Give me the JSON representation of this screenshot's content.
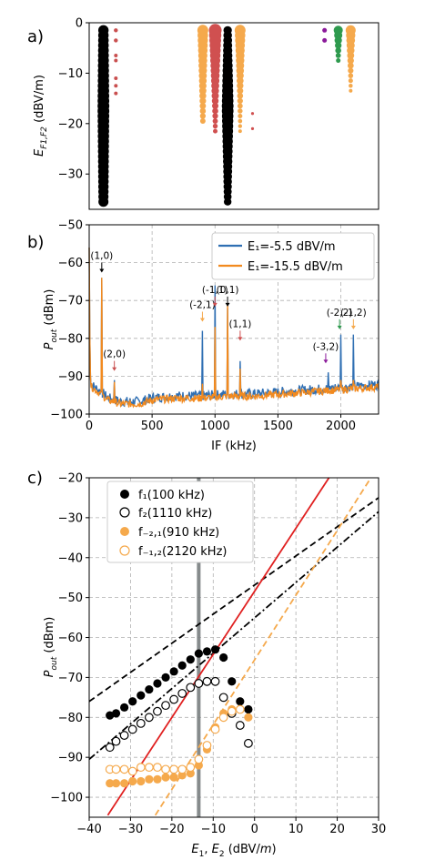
{
  "chart_data": [
    {
      "id": "a",
      "panel_label": "a)",
      "type": "scatter",
      "ylabel": "E_{F1,F2} (dBV/m)",
      "xlim": [
        0,
        2300
      ],
      "ylim": [
        -37,
        0
      ],
      "yticks": [
        {
          "value": 0,
          "label": "0"
        },
        {
          "value": -10,
          "label": "−10"
        },
        {
          "value": -20,
          "label": "−20"
        },
        {
          "value": -30,
          "label": "−30"
        }
      ],
      "series": [
        {
          "color": "#000000",
          "x": 100,
          "y_start": -1.5,
          "y_end": -35.5,
          "y_step": 1.0,
          "size_max": 6.5,
          "size_min": 5.0
        },
        {
          "color": "#c94f4f",
          "x": 200,
          "y": [
            -1.5,
            -3.5,
            -6.5,
            -7.5,
            -11.0,
            -12.5,
            -14.0
          ],
          "size": [
            2.2,
            2.2,
            2.0,
            2.0,
            2.0,
            2.0,
            2.0
          ]
        },
        {
          "color": "#f5a94c",
          "x": 900,
          "y_start": -1.5,
          "y_end": -19.5,
          "y_step": 1.0,
          "size_max": 6.0,
          "size_min": 3.0
        },
        {
          "color": "#d05050",
          "x": 1000,
          "y_start": -1.5,
          "y_end": -21.5,
          "y_step": 1.0,
          "size_max": 7.0,
          "size_min": 2.5
        },
        {
          "color": "#000000",
          "x": 1100,
          "y_start": -1.5,
          "y_end": -35.5,
          "y_step": 1.0,
          "size_max": 6.5,
          "size_min": 3.0
        },
        {
          "color": "#f5a94c",
          "x": 1200,
          "y_start": -1.5,
          "y_end": -21.5,
          "y_step": 1.0,
          "size_max": 6.0,
          "size_min": 2.0
        },
        {
          "color": "#d05050",
          "x": 1300,
          "y": [
            -18.0,
            -21.0
          ],
          "size": [
            1.6,
            1.6
          ]
        },
        {
          "color": "#8b1a9a",
          "x": 1880,
          "y": [
            -1.5,
            -3.5
          ],
          "size": [
            2.5,
            2.5
          ]
        },
        {
          "color": "#2e9a4e",
          "x": 1990,
          "y_start": -1.5,
          "y_end": -7.5,
          "y_step": 1.0,
          "size_max": 5.0,
          "size_min": 2.5
        },
        {
          "color": "#f5a94c",
          "x": 2090,
          "y_start": -1.5,
          "y_end": -13.5,
          "y_step": 1.0,
          "size_max": 5.5,
          "size_min": 2.0
        }
      ]
    },
    {
      "id": "b",
      "panel_label": "b)",
      "type": "line",
      "xlabel": "IF (kHz)",
      "ylabel": "P_{out} (dBm)",
      "xlim": [
        0,
        2300
      ],
      "ylim": [
        -100,
        -50
      ],
      "xticks": [
        0,
        500,
        1000,
        1500,
        2000
      ],
      "yticks": [
        -100,
        -90,
        -80,
        -70,
        -60,
        -50
      ],
      "grid": true,
      "legend": {
        "position": "top-right",
        "entries": [
          {
            "label": "E₁=-5.5 dBV/m",
            "color": "#2f6fb3"
          },
          {
            "label": "E₁=-15.5 dBV/m",
            "color": "#f28a1f"
          }
        ]
      },
      "blue_peaks": [
        {
          "x": 100,
          "y": -64
        },
        {
          "x": 200,
          "y": -91
        },
        {
          "x": 900,
          "y": -78
        },
        {
          "x": 1000,
          "y": -66
        },
        {
          "x": 1100,
          "y": -72
        },
        {
          "x": 1200,
          "y": -86
        },
        {
          "x": 1900,
          "y": -89
        },
        {
          "x": 2000,
          "y": -79
        },
        {
          "x": 2100,
          "y": -79
        }
      ],
      "orange_peaks": [
        {
          "x": 100,
          "y": -64
        },
        {
          "x": 200,
          "y": -91.5
        },
        {
          "x": 900,
          "y": -92
        },
        {
          "x": 1000,
          "y": -77
        },
        {
          "x": 1100,
          "y": -71
        },
        {
          "x": 1200,
          "y": -88
        },
        {
          "x": 1900,
          "y": -93
        },
        {
          "x": 2000,
          "y": -91
        },
        {
          "x": 2100,
          "y": -91
        }
      ],
      "noise_floor": [
        [
          0,
          -92
        ],
        [
          150,
          -96
        ],
        [
          250,
          -97
        ],
        [
          400,
          -97
        ],
        [
          500,
          -96
        ],
        [
          700,
          -95.5
        ],
        [
          900,
          -95.5
        ],
        [
          1100,
          -95
        ],
        [
          1300,
          -95
        ],
        [
          1500,
          -94.5
        ],
        [
          1700,
          -94
        ],
        [
          1900,
          -93.5
        ],
        [
          2100,
          -93
        ],
        [
          2300,
          -92.5
        ]
      ],
      "annotations": [
        {
          "text": "(1,0)",
          "x": 100,
          "y": -59,
          "arrow_color": "#000000"
        },
        {
          "text": "(2,0)",
          "x": 200,
          "y": -85,
          "arrow_color": "#c94f4f"
        },
        {
          "text": "(-2,1)",
          "x": 900,
          "y": -72,
          "arrow_color": "#f5a94c"
        },
        {
          "text": "(-1,1)",
          "x": 1000,
          "y": -68,
          "arrow_color": "#d05050"
        },
        {
          "text": "(0,1)",
          "x": 1100,
          "y": -68,
          "arrow_color": "#000000"
        },
        {
          "text": "(1,1)",
          "x": 1200,
          "y": -77,
          "arrow_color": "#d05050"
        },
        {
          "text": "(-3,2)",
          "x": 1880,
          "y": -83,
          "arrow_color": "#8b1a9a"
        },
        {
          "text": "(-2,2)",
          "x": 1990,
          "y": -74,
          "arrow_color": "#2e9a4e"
        },
        {
          "text": "(-1,2)",
          "x": 2100,
          "y": -74,
          "arrow_color": "#f5a94c"
        }
      ]
    },
    {
      "id": "c",
      "panel_label": "c)",
      "type": "scatter",
      "xlabel": "E₁, E₂ (dBV/m)",
      "ylabel": "P_{out} (dBm)",
      "xlim": [
        -40,
        30
      ],
      "ylim": [
        -105,
        -20
      ],
      "xticks": [
        -40,
        -30,
        -20,
        -10,
        0,
        10,
        20,
        30
      ],
      "yticks": [
        -100,
        -90,
        -80,
        -70,
        -60,
        -50,
        -40,
        -30,
        -20
      ],
      "grid": true,
      "legend": {
        "position": "top-left",
        "entries": [
          {
            "label": "f₁(100 kHz)",
            "marker": "filled",
            "color": "#000000"
          },
          {
            "label": "f₂(1110 kHz)",
            "marker": "open",
            "color": "#000000"
          },
          {
            "label": "f₋₂,₁(910 kHz)",
            "marker": "filled",
            "color": "#f5a94c"
          },
          {
            "label": "f₋₁,₂(2120 kHz)",
            "marker": "open",
            "color": "#f5a94c"
          }
        ]
      },
      "vline_x": -13.5,
      "series": [
        {
          "name": "f₁(100 kHz)",
          "marker": "filled",
          "color": "#000000",
          "x": [
            -35,
            -33.5,
            -31.5,
            -29.5,
            -27.5,
            -25.5,
            -23.5,
            -21.5,
            -19.5,
            -17.5,
            -15.5,
            -13.5,
            -11.5,
            -9.5,
            -7.5,
            -5.5,
            -3.5,
            -1.5
          ],
          "y": [
            -79.5,
            -79,
            -77.5,
            -76,
            -74.5,
            -73,
            -71.5,
            -70,
            -68.5,
            -67,
            -65.5,
            -64,
            -63.5,
            -63,
            -65,
            -71,
            -76,
            -78
          ]
        },
        {
          "name": "f₂(1110 kHz)",
          "marker": "open",
          "color": "#000000",
          "x": [
            -35,
            -33.5,
            -31.5,
            -29.5,
            -27.5,
            -25.5,
            -23.5,
            -21.5,
            -19.5,
            -17.5,
            -15.5,
            -13.5,
            -11.5,
            -9.5,
            -7.5,
            -5.5,
            -3.5,
            -1.5
          ],
          "y": [
            -87.5,
            -86,
            -84.5,
            -83,
            -81.5,
            -80,
            -78.5,
            -77,
            -75.5,
            -74,
            -72.5,
            -71.5,
            -71,
            -71,
            -75,
            -79,
            -82,
            -86.5
          ]
        },
        {
          "name": "f₋₂,₁(910 kHz)",
          "marker": "filled",
          "color": "#f5a94c",
          "x": [
            -35,
            -33.5,
            -31.5,
            -29.5,
            -27.5,
            -25.5,
            -23.5,
            -21.5,
            -19.5,
            -17.5,
            -15.5,
            -13.5,
            -11.5,
            -9.5,
            -7.5,
            -5.5,
            -3.5,
            -1.5
          ],
          "y": [
            -96.5,
            -96.5,
            -96.5,
            -96,
            -96,
            -95.5,
            -95.5,
            -95,
            -95,
            -94.5,
            -94,
            -92,
            -88,
            -82.5,
            -79,
            -78,
            -78,
            -80
          ]
        },
        {
          "name": "f₋₁,₂(2120 kHz)",
          "marker": "open",
          "color": "#f5a94c",
          "x": [
            -35,
            -33.5,
            -31.5,
            -29.5,
            -27.5,
            -25.5,
            -23.5,
            -21.5,
            -19.5,
            -17.5,
            -15.5,
            -13.5,
            -11.5,
            -9.5,
            -7.5,
            -5.5,
            -3.5
          ],
          "y": [
            -93,
            -93,
            -93,
            -93.5,
            -92.5,
            -92.5,
            -92.5,
            -93,
            -93,
            -93,
            -92.5,
            -90.5,
            -87,
            -83,
            -80,
            -78.5,
            -78
          ]
        }
      ],
      "fit_lines": [
        {
          "style": "dashed",
          "color": "#000000",
          "from": [
            -40,
            -76
          ],
          "to": [
            30,
            -25
          ]
        },
        {
          "style": "dashdot",
          "color": "#000000",
          "from": [
            -40,
            -90.5
          ],
          "to": [
            30,
            -28.5
          ]
        },
        {
          "style": "solid",
          "color": "#e02020",
          "from": [
            -35.5,
            -104.5
          ],
          "to": [
            18,
            -20
          ]
        },
        {
          "style": "dashed",
          "color": "#f5a94c",
          "from": [
            -24,
            -104.5
          ],
          "to": [
            30,
            -17
          ]
        }
      ]
    }
  ]
}
